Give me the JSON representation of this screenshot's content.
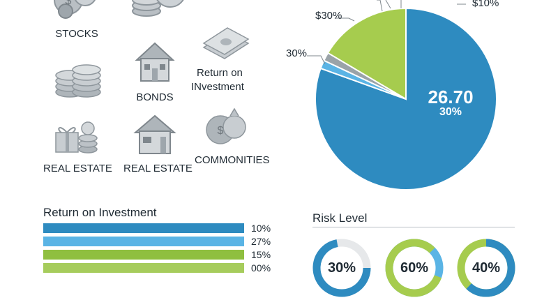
{
  "icons": {
    "stocks_label": "STOCKS",
    "bonds_label": "BONDS",
    "return_on_investment_label_1": "Return on",
    "return_on_investment_label_2": "INvestment",
    "real_estate_label_1": "REAL ESTATE",
    "real_estate_label_2": "REAL ESTATE",
    "commodities_label": "COMMONITIES"
  },
  "roi": {
    "title": "Return on Investment",
    "rows": [
      {
        "pct_label": "10%",
        "color": "#2e8bc0"
      },
      {
        "pct_label": "27%",
        "color": "#5ab4e5"
      },
      {
        "pct_label": "15%",
        "color": "#8fbf3f"
      },
      {
        "pct_label": "00%",
        "color": "#a6cc5c"
      }
    ]
  },
  "risk": {
    "title": "Risk Level",
    "donuts": [
      {
        "label": "30%",
        "value": 0.3,
        "color": "#2e8bc0",
        "secondary_color": "#e6e8ea"
      },
      {
        "label": "60%",
        "value": 0.6,
        "color": "#a6cc4e",
        "secondary_color": "#5ab4e5"
      },
      {
        "label": "40%",
        "value": 0.4,
        "color": "#2e8bc0",
        "secondary_color": "#a6cc4e"
      }
    ]
  },
  "chart_data": {
    "type": "pie",
    "slices": [
      {
        "label": "$10%",
        "value": 80.5,
        "color": "#2e8bc0"
      },
      {
        "label": "",
        "value": 1.5,
        "color": "#5ab4e5"
      },
      {
        "label": "",
        "value": 1.5,
        "color": "#9aa3a8"
      },
      {
        "label": "$30%",
        "value": 16.5,
        "color": "#a6cc4e"
      }
    ],
    "outer_label_left": "30%",
    "center_value": "26.70",
    "center_pct": "30%"
  }
}
